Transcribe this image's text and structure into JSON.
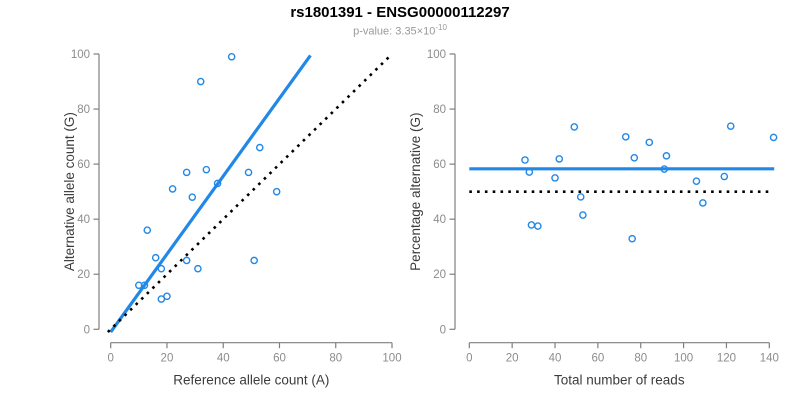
{
  "header": {
    "title": "rs1801391 - ENSG00000112297",
    "pvalue_prefix": "p-value: 3.35×10",
    "pvalue_exponent": "-10"
  },
  "colors": {
    "accent_blue": "#2188e8",
    "line_black": "#000000",
    "axis_gray": "#7f7f7f",
    "tick_label_gray": "#8c8c8c",
    "axis_title_color": "#3c3c3c",
    "subtitle_gray": "#999999",
    "title_color": "#000000",
    "background": "#ffffff"
  },
  "chart_data": [
    {
      "type": "scatter",
      "name": "allele-counts-scatter",
      "xlabel": "Reference allele count (A)",
      "ylabel": "Alternative allele count (G)",
      "xlim": [
        0,
        100
      ],
      "ylim": [
        0,
        100
      ],
      "xticks": [
        0,
        20,
        40,
        60,
        80,
        100
      ],
      "yticks": [
        0,
        20,
        40,
        60,
        80,
        100
      ],
      "grid": false,
      "points": [
        [
          10,
          16
        ],
        [
          12,
          16
        ],
        [
          13,
          36
        ],
        [
          16,
          26
        ],
        [
          18,
          11
        ],
        [
          18,
          22
        ],
        [
          20,
          12
        ],
        [
          22,
          51
        ],
        [
          27,
          25
        ],
        [
          27,
          57
        ],
        [
          29,
          48
        ],
        [
          31,
          22
        ],
        [
          32,
          90
        ],
        [
          34,
          58
        ],
        [
          38,
          53
        ],
        [
          43,
          99
        ],
        [
          49,
          57
        ],
        [
          51,
          25
        ],
        [
          53,
          66
        ],
        [
          59,
          50
        ]
      ],
      "lines": [
        {
          "name": "fit-line",
          "style": "solid",
          "color": "#2188e8",
          "from": [
            0,
            -1
          ],
          "to": [
            71,
            99.5
          ]
        },
        {
          "name": "identity-line",
          "style": "dotted",
          "color": "#000000",
          "from": [
            -1,
            -1
          ],
          "to": [
            99,
            99
          ]
        }
      ]
    },
    {
      "type": "scatter",
      "name": "percentage-vs-reads-scatter",
      "xlabel": "Total number of reads",
      "ylabel": "Percentage alternative (G)",
      "xlim": [
        0,
        140
      ],
      "ylim": [
        0,
        100
      ],
      "xticks": [
        0,
        20,
        40,
        60,
        80,
        100,
        120,
        140
      ],
      "yticks": [
        0,
        20,
        40,
        60,
        80,
        100
      ],
      "grid": false,
      "points": [
        [
          26,
          61.5
        ],
        [
          28,
          57.1
        ],
        [
          29,
          37.9
        ],
        [
          32,
          37.5
        ],
        [
          40,
          55.0
        ],
        [
          42,
          61.9
        ],
        [
          49,
          73.5
        ],
        [
          52,
          48.1
        ],
        [
          53,
          41.5
        ],
        [
          73,
          69.9
        ],
        [
          76,
          32.9
        ],
        [
          77,
          62.3
        ],
        [
          84,
          67.9
        ],
        [
          91,
          58.2
        ],
        [
          92,
          63.0
        ],
        [
          106,
          53.8
        ],
        [
          109,
          45.9
        ],
        [
          119,
          55.5
        ],
        [
          122,
          73.8
        ],
        [
          142,
          69.7
        ]
      ],
      "lines": [
        {
          "name": "mean-percentage-line",
          "style": "solid",
          "color": "#2188e8",
          "from": [
            0,
            58.3
          ],
          "to": [
            142.3,
            58.3
          ]
        },
        {
          "name": "fifty-percent-line",
          "style": "dotted",
          "color": "#000000",
          "from": [
            0,
            50
          ],
          "to": [
            139.8,
            50
          ]
        }
      ]
    }
  ]
}
